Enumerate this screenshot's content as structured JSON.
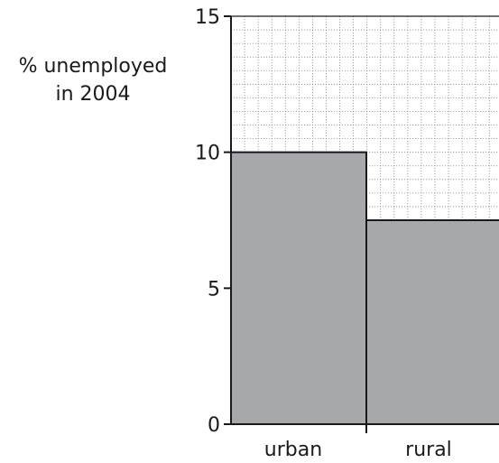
{
  "chart_data": {
    "type": "bar",
    "ylabel_lines": [
      "% unemployed",
      "in 2004"
    ],
    "categories": [
      "urban",
      "rural"
    ],
    "values": [
      10,
      7.5
    ],
    "ylim": [
      0,
      15
    ],
    "yticks": [
      0,
      5,
      10,
      15
    ],
    "grid": true,
    "minor_grid_step": 0.5,
    "colors": {
      "bar_fill": "#a7a8ab",
      "bar_stroke": "#1a1a1a",
      "grid": "#8c8c8c",
      "axis": "#1a1a1a"
    }
  }
}
